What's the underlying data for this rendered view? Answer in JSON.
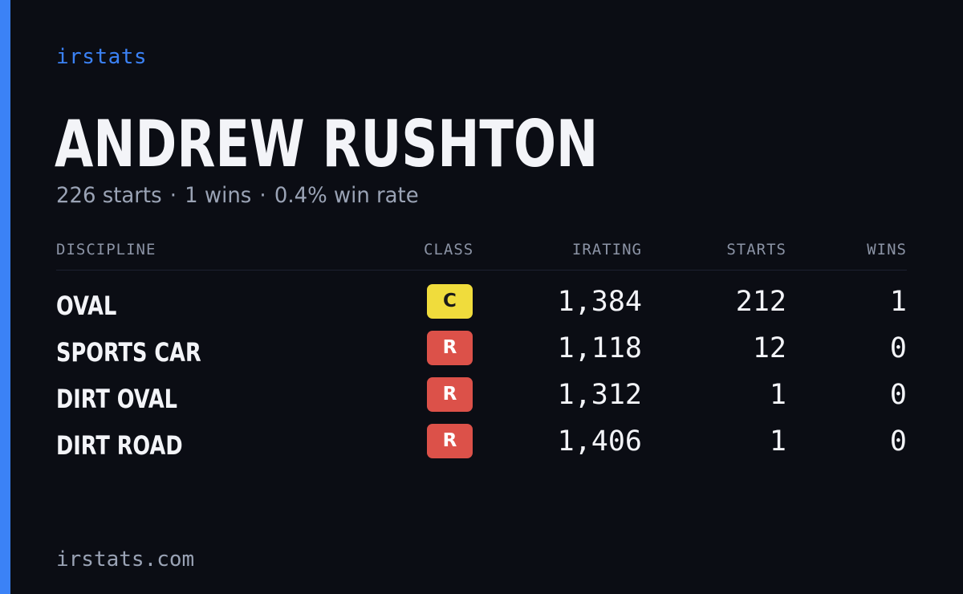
{
  "brand": "irstats",
  "driver": {
    "name": "ANDREW RUSHTON",
    "starts": "226 starts",
    "wins": "1 wins",
    "win_rate": "0.4% win rate",
    "separator": "·"
  },
  "table": {
    "headers": {
      "discipline": "DISCIPLINE",
      "class": "CLASS",
      "irating": "IRATING",
      "starts": "STARTS",
      "wins": "WINS"
    },
    "rows": [
      {
        "discipline": "OVAL",
        "class": "C",
        "irating": "1,384",
        "starts": "212",
        "wins": "1"
      },
      {
        "discipline": "SPORTS CAR",
        "class": "R",
        "irating": "1,118",
        "starts": "12",
        "wins": "0"
      },
      {
        "discipline": "DIRT OVAL",
        "class": "R",
        "irating": "1,312",
        "starts": "1",
        "wins": "0"
      },
      {
        "discipline": "DIRT ROAD",
        "class": "R",
        "irating": "1,406",
        "starts": "1",
        "wins": "0"
      }
    ]
  },
  "footer": "irstats.com",
  "colors": {
    "accent": "#3b82f6",
    "background": "#0b0d14",
    "class_c": "#f0dc3c",
    "class_r": "#dc5149"
  }
}
